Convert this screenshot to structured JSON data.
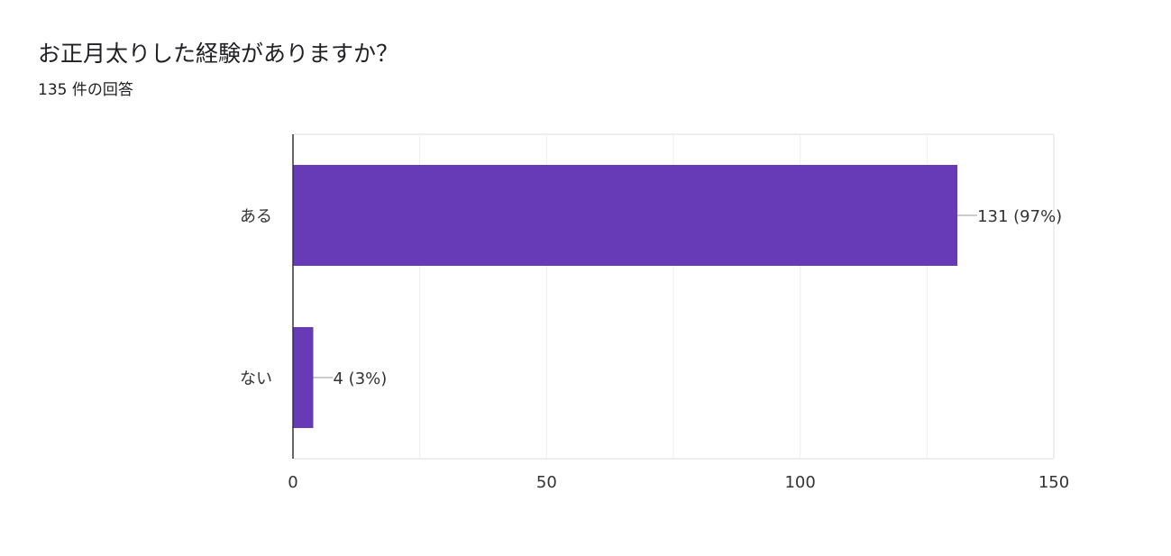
{
  "title": "お正月太りした経験がありますか？",
  "response_count": "135 件の回答",
  "colors": {
    "bar": "#673ab7",
    "grid": "#eeeeee",
    "axis": "#333333",
    "leader": "#999999"
  },
  "chart_data": {
    "type": "bar",
    "orientation": "horizontal",
    "categories": [
      "ある",
      "ない"
    ],
    "values": [
      131,
      4
    ],
    "data_labels": [
      "131 (97%)",
      "4 (3%)"
    ],
    "xlim": [
      0,
      150
    ],
    "x_ticks": [
      0,
      50,
      100,
      150
    ],
    "x_tick_labels": [
      "0",
      "50",
      "100",
      "150"
    ],
    "grid": true,
    "legend": "none"
  }
}
